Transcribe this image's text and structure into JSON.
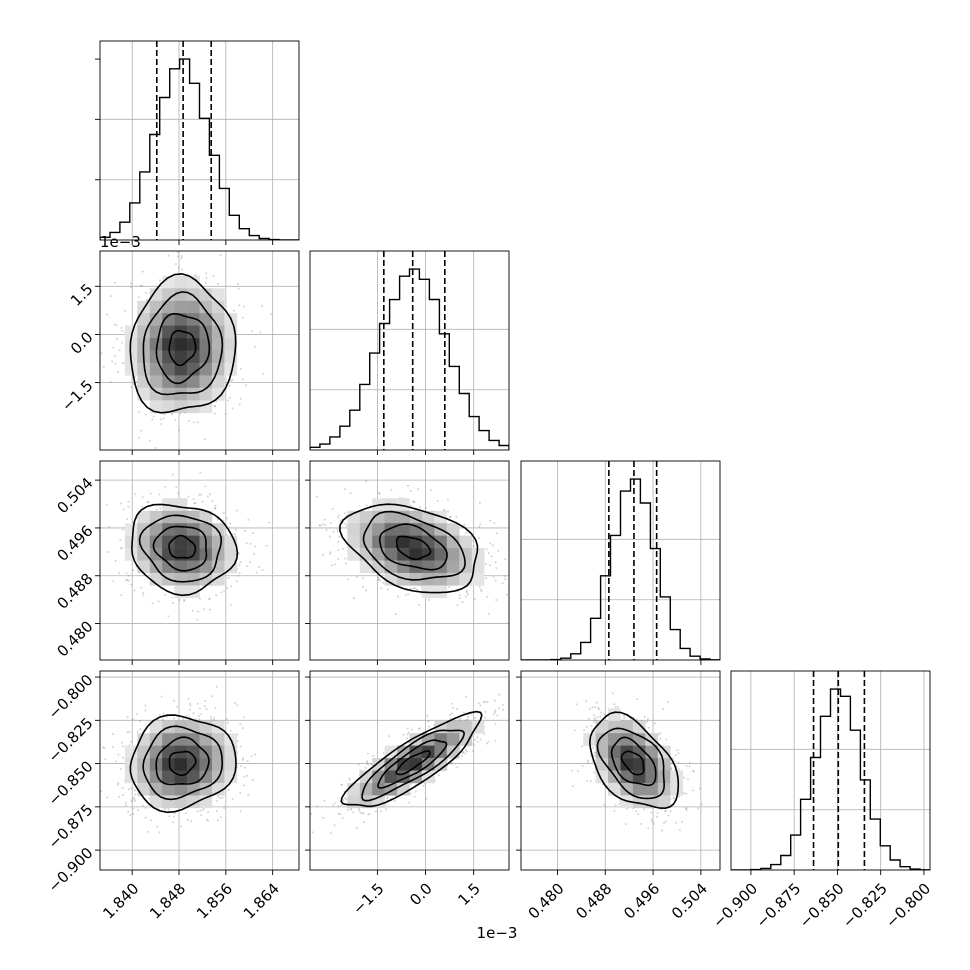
{
  "chart_data": {
    "type": "corner",
    "histogram_style": "step",
    "grid": true,
    "contour_levels": 4,
    "scatter_color": "#808080",
    "params": [
      {
        "range": [
          1.8345,
          1.8685
        ],
        "ticks": [
          1.84,
          1.848,
          1.856,
          1.864
        ],
        "tick_labels": [
          "1.840",
          "1.848",
          "1.856",
          "1.864"
        ],
        "mean": 1.8485,
        "sigma": 0.0045,
        "quantiles": [
          1.8442,
          1.8487,
          1.8535
        ],
        "offset_label": ""
      },
      {
        "range": [
          -0.0036,
          0.0026
        ],
        "ticks": [
          -0.0015,
          0.0,
          0.0015
        ],
        "tick_labels": [
          "−1.5",
          "0.0",
          "1.5"
        ],
        "mean": -0.0004,
        "sigma": 0.00105,
        "quantiles": [
          -0.0013,
          -0.0004,
          0.0006
        ],
        "offset_label": "1e−3"
      },
      {
        "range": [
          0.4739,
          0.5072
        ],
        "ticks": [
          0.48,
          0.488,
          0.496,
          0.504
        ],
        "tick_labels": [
          "0.480",
          "0.488",
          "0.496",
          "0.504"
        ],
        "mean": 0.4927,
        "sigma": 0.0037,
        "quantiles": [
          0.4886,
          0.4928,
          0.4966
        ],
        "offset_label": ""
      },
      {
        "range": [
          -0.9115,
          -0.7965
        ],
        "ticks": [
          -0.9,
          -0.875,
          -0.85,
          -0.825,
          -0.8
        ],
        "tick_labels": [
          "−0.900",
          "−0.875",
          "−0.850",
          "−0.825",
          "−0.800"
        ],
        "mean": -0.8495,
        "sigma": 0.0135,
        "quantiles": [
          -0.8638,
          -0.8495,
          -0.8344
        ],
        "offset_label": ""
      }
    ],
    "correlations": [
      [
        1,
        0.05,
        -0.1,
        0.08
      ],
      [
        0.05,
        1,
        -0.35,
        0.85
      ],
      [
        -0.1,
        -0.35,
        1,
        -0.45
      ],
      [
        0.08,
        0.85,
        -0.45,
        1
      ]
    ]
  }
}
